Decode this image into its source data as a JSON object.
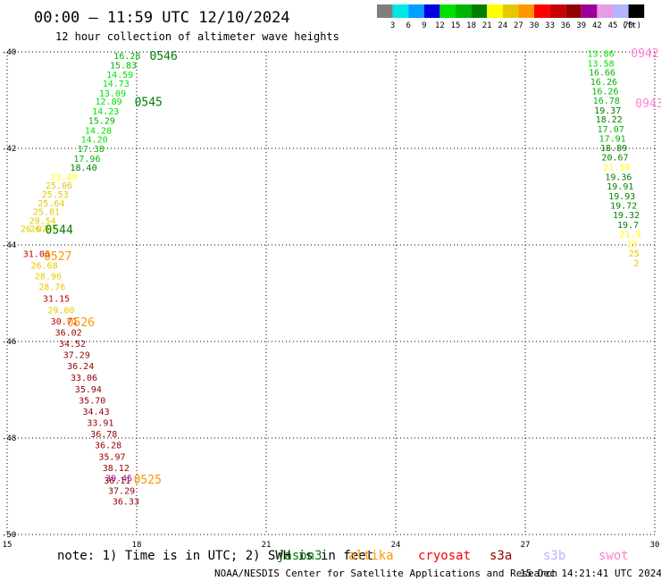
{
  "header": {
    "title": "00:00 — 11:59 UTC 12/10/2024",
    "subtitle": "12 hour collection of altimeter wave heights"
  },
  "colorbar": {
    "colors": [
      "#7f7f7f",
      "#00e5e5",
      "#00a0ff",
      "#0000e0",
      "#00e000",
      "#00b400",
      "#008000",
      "#ffff00",
      "#e6c800",
      "#ff9600",
      "#ff0000",
      "#c80000",
      "#960000",
      "#9b009b",
      "#e69be6",
      "#b4b4ff",
      "#000000"
    ],
    "labels": [
      "3",
      "6",
      "9",
      "12",
      "15",
      "18",
      "21",
      "24",
      "27",
      "30",
      "33",
      "36",
      "39",
      "42",
      "45",
      "70",
      "(ft)"
    ]
  },
  "chart_data": {
    "type": "scatter",
    "title": "00:00 — 11:59 UTC 12/10/2024",
    "subtitle": "12 hour collection of altimeter wave heights",
    "xlim": [
      15,
      30
    ],
    "ylim": [
      -50,
      -40
    ],
    "xticks": [
      "15",
      "18",
      "21",
      "24",
      "27",
      "30"
    ],
    "yticks": [
      "-40",
      "-42",
      "-44",
      "-46",
      "-48",
      "-50"
    ],
    "grid": true,
    "units": "ft",
    "points": [
      {
        "x": 17.78,
        "y": -40.07,
        "v": "16.28",
        "c": "#00b400"
      },
      {
        "x": 17.69,
        "y": -40.27,
        "v": "15.83",
        "c": "#00b400"
      },
      {
        "x": 17.61,
        "y": -40.46,
        "v": "14.59",
        "c": "#00e000"
      },
      {
        "x": 17.52,
        "y": -40.65,
        "v": "14.73",
        "c": "#00e000"
      },
      {
        "x": 17.44,
        "y": -40.85,
        "v": "13.09",
        "c": "#00e000"
      },
      {
        "x": 17.35,
        "y": -41.02,
        "v": "12.89",
        "c": "#00e000"
      },
      {
        "x": 17.28,
        "y": -41.22,
        "v": "14.23",
        "c": "#00e000"
      },
      {
        "x": 17.19,
        "y": -41.42,
        "v": "15.29",
        "c": "#00b400"
      },
      {
        "x": 17.11,
        "y": -41.62,
        "v": "14.28",
        "c": "#00e000"
      },
      {
        "x": 17.02,
        "y": -41.81,
        "v": "14.20",
        "c": "#00e000"
      },
      {
        "x": 16.94,
        "y": -42.0,
        "v": "17.38",
        "c": "#00b400"
      },
      {
        "x": 16.85,
        "y": -42.2,
        "v": "17.96",
        "c": "#00b400"
      },
      {
        "x": 16.77,
        "y": -42.39,
        "v": "18.40",
        "c": "#008000"
      },
      {
        "x": 16.31,
        "y": -42.58,
        "v": "23.49",
        "c": "#ffff00"
      },
      {
        "x": 16.2,
        "y": -42.76,
        "v": "25.06",
        "c": "#e6c800"
      },
      {
        "x": 16.11,
        "y": -42.94,
        "v": "25.53",
        "c": "#e6c800"
      },
      {
        "x": 16.02,
        "y": -43.13,
        "v": "25.64",
        "c": "#e6c800"
      },
      {
        "x": 15.91,
        "y": -43.31,
        "v": "25.81",
        "c": "#e6c800"
      },
      {
        "x": 15.82,
        "y": -43.49,
        "v": "29.54",
        "c": "#e6c800"
      },
      {
        "x": 15.62,
        "y": -43.66,
        "v": "26.07",
        "c": "#e6c800"
      },
      {
        "x": 15.84,
        "y": -43.66,
        "v": "26.87",
        "c": "#e6c800"
      },
      {
        "x": 15.68,
        "y": -44.18,
        "v": "31.06",
        "c": "#c80000"
      },
      {
        "x": 15.86,
        "y": -44.42,
        "v": "26.68",
        "c": "#e6c800"
      },
      {
        "x": 15.95,
        "y": -44.64,
        "v": "28.96",
        "c": "#e6c800"
      },
      {
        "x": 16.04,
        "y": -44.86,
        "v": "28.76",
        "c": "#e6c800"
      },
      {
        "x": 16.14,
        "y": -45.1,
        "v": "31.15",
        "c": "#c80000"
      },
      {
        "x": 16.25,
        "y": -45.34,
        "v": "29.00",
        "c": "#e6c800"
      },
      {
        "x": 16.32,
        "y": -45.57,
        "v": "30.71",
        "c": "#c80000"
      },
      {
        "x": 16.42,
        "y": -45.81,
        "v": "36.02",
        "c": "#960000"
      },
      {
        "x": 16.51,
        "y": -46.04,
        "v": "34.52",
        "c": "#960000"
      },
      {
        "x": 16.61,
        "y": -46.27,
        "v": "37.29",
        "c": "#960000"
      },
      {
        "x": 16.7,
        "y": -46.5,
        "v": "36.24",
        "c": "#960000"
      },
      {
        "x": 16.78,
        "y": -46.74,
        "v": "33.06",
        "c": "#960000"
      },
      {
        "x": 16.88,
        "y": -46.98,
        "v": "35.94",
        "c": "#960000"
      },
      {
        "x": 16.97,
        "y": -47.21,
        "v": "35.70",
        "c": "#960000"
      },
      {
        "x": 17.06,
        "y": -47.44,
        "v": "34.43",
        "c": "#960000"
      },
      {
        "x": 17.16,
        "y": -47.68,
        "v": "33.91",
        "c": "#960000"
      },
      {
        "x": 17.24,
        "y": -47.91,
        "v": "36.78",
        "c": "#960000"
      },
      {
        "x": 17.34,
        "y": -48.14,
        "v": "36.28",
        "c": "#960000"
      },
      {
        "x": 17.43,
        "y": -48.38,
        "v": "35.97",
        "c": "#960000"
      },
      {
        "x": 17.52,
        "y": -48.61,
        "v": "38.12",
        "c": "#960000"
      },
      {
        "x": 17.59,
        "y": -48.82,
        "v": "39.45",
        "c": "#9b009b"
      },
      {
        "x": 17.55,
        "y": -48.87,
        "v": "36.11",
        "c": "#960000"
      },
      {
        "x": 17.65,
        "y": -49.08,
        "v": "37.29",
        "c": "#960000"
      },
      {
        "x": 17.75,
        "y": -49.31,
        "v": "36.33",
        "c": "#960000"
      },
      {
        "x": 28.75,
        "y": -40.03,
        "v": "13.86",
        "c": "#00e000"
      },
      {
        "x": 28.75,
        "y": -40.23,
        "v": "13.58",
        "c": "#00e000"
      },
      {
        "x": 28.78,
        "y": -40.42,
        "v": "16.66",
        "c": "#00b400"
      },
      {
        "x": 28.82,
        "y": -40.61,
        "v": "16.26",
        "c": "#00b400"
      },
      {
        "x": 28.85,
        "y": -40.81,
        "v": "16.26",
        "c": "#00b400"
      },
      {
        "x": 28.88,
        "y": -41.0,
        "v": "16.78",
        "c": "#00b400"
      },
      {
        "x": 28.91,
        "y": -41.2,
        "v": "19.37",
        "c": "#008000"
      },
      {
        "x": 28.94,
        "y": -41.39,
        "v": "18.22",
        "c": "#008000"
      },
      {
        "x": 28.98,
        "y": -41.59,
        "v": "17.07",
        "c": "#00b400"
      },
      {
        "x": 29.02,
        "y": -41.79,
        "v": "17.91",
        "c": "#00b400"
      },
      {
        "x": 29.05,
        "y": -41.98,
        "v": "18.89",
        "c": "#008000"
      },
      {
        "x": 29.08,
        "y": -42.18,
        "v": "20.67",
        "c": "#008000"
      },
      {
        "x": 29.12,
        "y": -42.38,
        "v": "21.59",
        "c": "#ffff00"
      },
      {
        "x": 29.16,
        "y": -42.58,
        "v": "19.36",
        "c": "#008000"
      },
      {
        "x": 29.2,
        "y": -42.78,
        "v": "19.91",
        "c": "#008000"
      },
      {
        "x": 29.24,
        "y": -42.98,
        "v": "19.93",
        "c": "#008000"
      },
      {
        "x": 29.28,
        "y": -43.18,
        "v": "19.72",
        "c": "#008000"
      },
      {
        "x": 29.34,
        "y": -43.37,
        "v": "19.32",
        "c": "#008000"
      },
      {
        "x": 29.38,
        "y": -43.57,
        "v": "19.7",
        "c": "#008000"
      },
      {
        "x": 29.43,
        "y": -43.77,
        "v": "21.9",
        "c": "#ffff00"
      },
      {
        "x": 29.47,
        "y": -43.97,
        "v": "23",
        "c": "#ffff00"
      },
      {
        "x": 29.52,
        "y": -44.17,
        "v": "25",
        "c": "#e6c800"
      },
      {
        "x": 29.57,
        "y": -44.37,
        "v": "2",
        "c": "#e6c800"
      }
    ],
    "time_labels": [
      {
        "x": 18.3,
        "y": -40.07,
        "text": "0546",
        "c": "#008000"
      },
      {
        "x": 17.95,
        "y": -41.03,
        "v": "",
        "text": "0545",
        "c": "#008000"
      },
      {
        "x": 15.88,
        "y": -43.68,
        "text": "0544",
        "c": "#008000"
      },
      {
        "x": 15.85,
        "y": -44.22,
        "text": "0527",
        "c": "#ff9600"
      },
      {
        "x": 16.38,
        "y": -45.59,
        "text": "0526",
        "c": "#ff9600"
      },
      {
        "x": 17.93,
        "y": -48.85,
        "text": "0525",
        "c": "#ff9600"
      },
      {
        "x": 29.45,
        "y": -40.02,
        "text": "0942",
        "c": "#ff80d0"
      },
      {
        "x": 29.55,
        "y": -41.06,
        "text": "0943",
        "c": "#ff80d0"
      }
    ]
  },
  "footer": {
    "note": "note: 1) Time is in UTC; 2) SWH is in feet",
    "legend": [
      {
        "text": "jason3",
        "c": "#008000"
      },
      {
        "text": "altika",
        "c": "#ff9600"
      },
      {
        "text": "cryosat",
        "c": "#ff0000"
      },
      {
        "text": "s3a",
        "c": "#960000"
      },
      {
        "text": "s3b",
        "c": "#b4b4ff"
      },
      {
        "text": "swot",
        "c": "#ff80d0"
      }
    ],
    "credit": "NOAA/NESDIS Center for Satellite Applications and Research",
    "timestamp": "15 Dec 14:21:41 UTC 2024"
  }
}
